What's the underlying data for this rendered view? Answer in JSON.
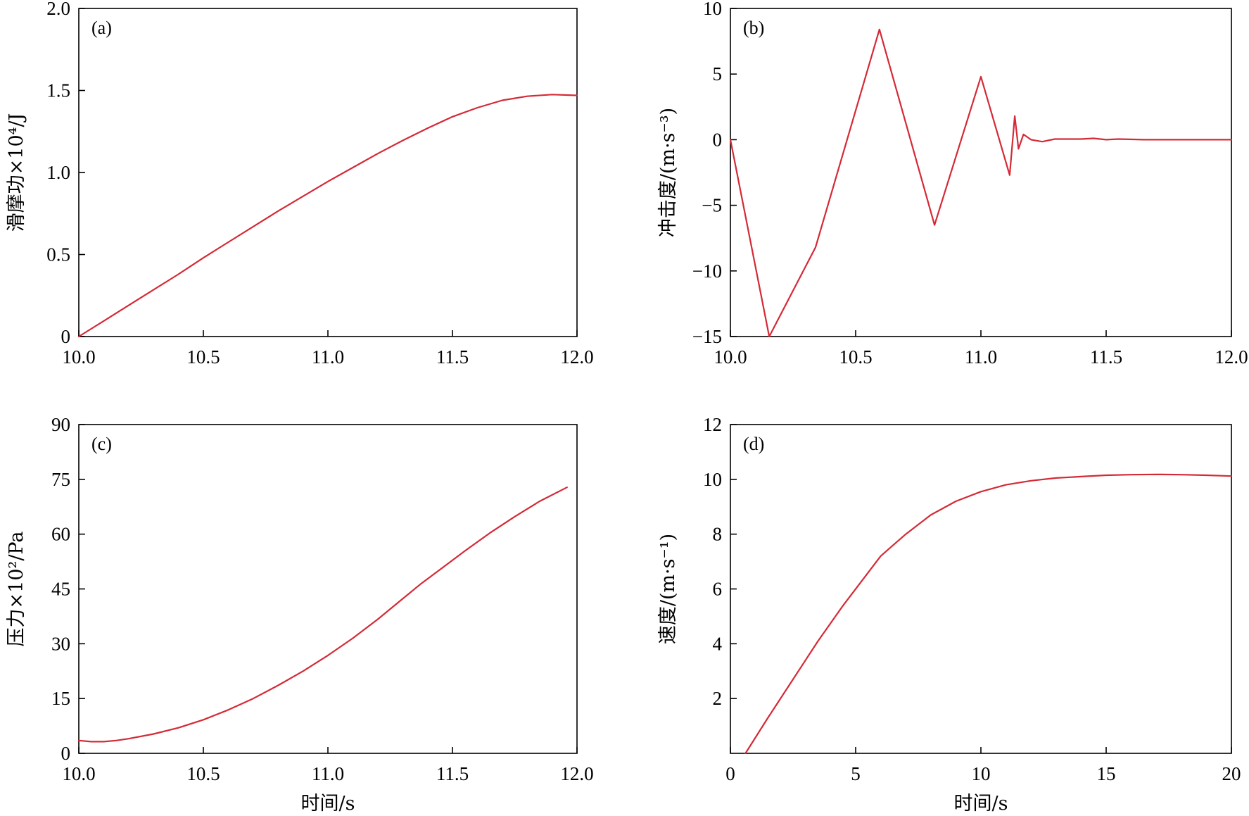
{
  "colors": {
    "line": "#d42a36",
    "axis": "#000000"
  },
  "chart_data": [
    {
      "id": "a",
      "type": "line",
      "panel_label": "(a)",
      "ylabel": "滑摩功×10⁴/J",
      "xlabel": "",
      "xlim": [
        10.0,
        12.0
      ],
      "ylim": [
        0,
        2.0
      ],
      "xticks": [
        10.0,
        10.5,
        11.0,
        11.5,
        12.0
      ],
      "xticklabels": [
        "10.0",
        "10.5",
        "11.0",
        "11.5",
        "12.0"
      ],
      "yticks": [
        0,
        0.5,
        1.0,
        1.5,
        2.0
      ],
      "yticklabels": [
        "0",
        "0.5",
        "1.0",
        "1.5",
        "2.0"
      ],
      "series": [
        {
          "x": [
            10.0,
            10.1,
            10.2,
            10.3,
            10.4,
            10.5,
            10.6,
            10.7,
            10.8,
            10.9,
            11.0,
            11.1,
            11.2,
            11.3,
            11.4,
            11.5,
            11.6,
            11.7,
            11.8,
            11.9,
            12.0
          ],
          "y": [
            0,
            0.095,
            0.19,
            0.285,
            0.38,
            0.48,
            0.575,
            0.67,
            0.765,
            0.855,
            0.945,
            1.03,
            1.115,
            1.195,
            1.27,
            1.34,
            1.395,
            1.44,
            1.465,
            1.475,
            1.47
          ]
        }
      ]
    },
    {
      "id": "b",
      "type": "line",
      "panel_label": "(b)",
      "ylabel": "冲击度/(m·s⁻³)",
      "xlabel": "",
      "xlim": [
        10.0,
        12.0
      ],
      "ylim": [
        -15,
        10
      ],
      "xticks": [
        10.0,
        10.5,
        11.0,
        11.5,
        12.0
      ],
      "xticklabels": [
        "10.0",
        "10.5",
        "11.0",
        "11.5",
        "12.0"
      ],
      "yticks": [
        -15,
        -10,
        -5,
        0,
        5,
        10
      ],
      "yticklabels": [
        "−15",
        "−10",
        "−5",
        "0",
        "5",
        "10"
      ],
      "series": [
        {
          "x": [
            10.0,
            10.155,
            10.34,
            10.595,
            10.815,
            11.0,
            11.115,
            11.135,
            11.15,
            11.17,
            11.2,
            11.245,
            11.295,
            11.4,
            11.45,
            11.5,
            11.55,
            11.65,
            11.8,
            12.0
          ],
          "y": [
            0,
            -15,
            -8.2,
            8.4,
            -6.5,
            4.8,
            -2.7,
            1.8,
            -0.7,
            0.4,
            0.0,
            -0.15,
            0.05,
            0.05,
            0.1,
            0.0,
            0.05,
            0.0,
            0.0,
            0.0
          ]
        }
      ]
    },
    {
      "id": "c",
      "type": "line",
      "panel_label": "(c)",
      "ylabel": "压力×10²/Pa",
      "xlabel": "时间/s",
      "xlim": [
        10.0,
        12.0
      ],
      "ylim": [
        0,
        90
      ],
      "xticks": [
        10.0,
        10.5,
        11.0,
        11.5,
        12.0
      ],
      "xticklabels": [
        "10.0",
        "10.5",
        "11.0",
        "11.5",
        "12.0"
      ],
      "yticks": [
        0,
        15,
        30,
        45,
        60,
        75,
        90
      ],
      "yticklabels": [
        "0",
        "15",
        "30",
        "45",
        "60",
        "75",
        "90"
      ],
      "series": [
        {
          "x": [
            10.0,
            10.05,
            10.1,
            10.15,
            10.2,
            10.3,
            10.4,
            10.5,
            10.6,
            10.7,
            10.8,
            10.9,
            11.0,
            11.1,
            11.2,
            11.3,
            11.375,
            11.45,
            11.55,
            11.65,
            11.75,
            11.85,
            11.96
          ],
          "y": [
            3.5,
            3.2,
            3.2,
            3.5,
            4.0,
            5.3,
            7.0,
            9.2,
            11.9,
            15.0,
            18.6,
            22.5,
            26.8,
            31.5,
            36.7,
            42.3,
            46.5,
            50.3,
            55.4,
            60.3,
            64.8,
            69.0,
            72.8
          ]
        }
      ]
    },
    {
      "id": "d",
      "type": "line",
      "panel_label": "(d)",
      "ylabel": "速度/(m·s⁻¹)",
      "xlabel": "时间/s",
      "xlim": [
        0,
        20
      ],
      "ylim": [
        0,
        12
      ],
      "xticks": [
        0,
        5,
        10,
        15,
        20
      ],
      "xticklabels": [
        "0",
        "5",
        "10",
        "15",
        "20"
      ],
      "yticks": [
        2,
        4,
        6,
        8,
        10,
        12
      ],
      "yticklabels": [
        "2",
        "4",
        "6",
        "8",
        "10",
        "12"
      ],
      "series": [
        {
          "x": [
            0.6,
            1.5,
            2.5,
            3.5,
            4.5,
            5.5,
            6.0,
            6.5,
            7.0,
            8.0,
            9.0,
            10.0,
            11.0,
            12.0,
            13.0,
            14.0,
            15.0,
            16.0,
            17.0,
            18.0,
            19.0,
            20.0
          ],
          "y": [
            0.0,
            1.3,
            2.7,
            4.1,
            5.4,
            6.6,
            7.2,
            7.6,
            8.0,
            8.7,
            9.2,
            9.55,
            9.8,
            9.95,
            10.05,
            10.1,
            10.15,
            10.17,
            10.18,
            10.17,
            10.15,
            10.12
          ]
        }
      ]
    }
  ]
}
